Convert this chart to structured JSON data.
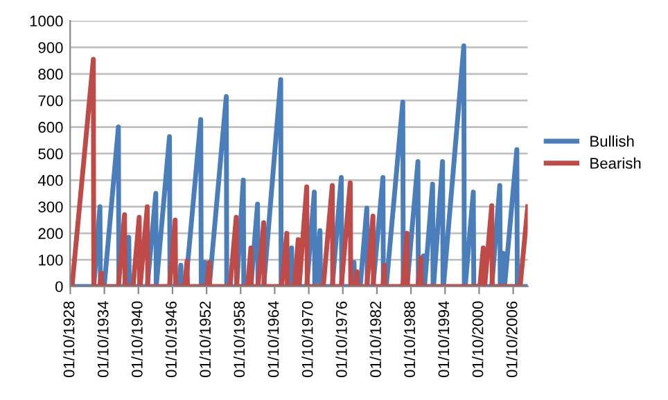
{
  "chart_data": {
    "type": "line",
    "series": [
      {
        "name": "Bullish",
        "color": "#4a7ebb",
        "x": [
          "1928-05",
          "1932-03",
          "1933-04",
          "1933-05",
          "1934-01",
          "1936-07",
          "1936-08",
          "1937-08",
          "1938-05",
          "1938-06",
          "1941-08",
          "1943-02",
          "1943-03",
          "1945-07",
          "1945-08",
          "1947-03",
          "1947-07",
          "1947-08",
          "1948-05",
          "1951-01",
          "1951-02",
          "1951-05",
          "1951-10",
          "1951-11",
          "1952-07",
          "1955-07",
          "1955-08",
          "1957-05",
          "1958-07",
          "1958-08",
          "1959-11",
          "1961-01",
          "1961-02",
          "1962-02",
          "1965-02",
          "1965-03",
          "1966-05",
          "1967-01",
          "1967-02",
          "1969-09",
          "1971-01",
          "1971-02",
          "1971-03",
          "1972-01",
          "1972-02",
          "1974-03",
          "1975-10",
          "1975-11",
          "1977-07",
          "1978-01",
          "1978-02",
          "1979-02",
          "1980-04",
          "1980-05",
          "1981-05",
          "1983-02",
          "1983-03",
          "1983-09",
          "1986-08",
          "1986-09",
          "1987-05",
          "1989-04",
          "1989-05",
          "1989-11",
          "1990-04",
          "1990-05",
          "1990-06",
          "1991-11",
          "1991-12",
          "1992-01",
          "1993-08",
          "1993-09",
          "1993-10",
          "1997-05",
          "1997-06",
          "1997-08",
          "1999-01",
          "1999-02",
          "2002-04",
          "2003-09",
          "2003-10",
          "2003-11",
          "2004-04",
          "2004-05",
          "2004-07",
          "2006-09",
          "2006-10",
          "2008-08"
        ],
        "values": [
          0,
          0,
          300,
          0,
          0,
          600,
          0,
          0,
          185,
          0,
          0,
          350,
          0,
          564,
          0,
          0,
          80,
          0,
          0,
          628,
          0,
          0,
          90,
          0,
          0,
          715,
          0,
          0,
          400,
          0,
          0,
          310,
          0,
          0,
          779,
          0,
          0,
          145,
          0,
          0,
          355,
          0,
          0,
          210,
          0,
          0,
          410,
          0,
          0,
          90,
          0,
          0,
          295,
          0,
          0,
          410,
          0,
          0,
          694,
          0,
          0,
          470,
          0,
          0,
          115,
          0,
          0,
          385,
          0,
          0,
          470,
          0,
          0,
          906,
          0,
          0,
          355,
          0,
          0,
          380,
          0,
          0,
          125,
          0,
          0,
          515,
          0,
          0
        ]
      },
      {
        "name": "Bearish",
        "color": "#be4b48",
        "x": [
          "1928-05",
          "1932-02",
          "1932-03",
          "1933-04",
          "1933-07",
          "1933-08",
          "1936-07",
          "1937-08",
          "1937-09",
          "1939-02",
          "1940-03",
          "1940-04",
          "1940-05",
          "1941-08",
          "1941-09",
          "1945-07",
          "1946-07",
          "1946-08",
          "1948-03",
          "1948-08",
          "1948-09",
          "1952-02",
          "1952-07",
          "1952-08",
          "1956-03",
          "1957-04",
          "1957-05",
          "1959-04",
          "1959-11",
          "1959-12",
          "1961-02",
          "1962-02",
          "1962-03",
          "1965-04",
          "1966-03",
          "1966-04",
          "1967-07",
          "1968-03",
          "1968-04",
          "1968-05",
          "1969-09",
          "1969-10",
          "1972-08",
          "1974-03",
          "1974-04",
          "1975-10",
          "1977-05",
          "1977-06",
          "1978-04",
          "1978-07",
          "1978-08",
          "1980-04",
          "1981-05",
          "1981-06",
          "1983-02",
          "1983-05",
          "1983-06",
          "1986-08",
          "1987-05",
          "1987-06",
          "1989-04",
          "1989-10",
          "1989-11",
          "2000-03",
          "2000-10",
          "2000-11",
          "2001-01",
          "2002-04",
          "2002-05",
          "2007-04",
          "2008-08"
        ],
        "values": [
          0,
          855,
          0,
          0,
          50,
          0,
          0,
          270,
          0,
          0,
          260,
          0,
          0,
          300,
          0,
          0,
          250,
          0,
          0,
          95,
          0,
          0,
          90,
          0,
          0,
          260,
          0,
          0,
          145,
          0,
          0,
          240,
          0,
          0,
          200,
          0,
          0,
          176,
          0,
          0,
          375,
          0,
          0,
          380,
          0,
          0,
          390,
          0,
          0,
          55,
          0,
          0,
          265,
          0,
          0,
          80,
          0,
          0,
          200,
          0,
          0,
          108,
          0,
          0,
          145,
          0,
          0,
          304,
          0,
          0,
          300
        ]
      }
    ],
    "xlim": [
      "1928-01",
      "2008-08"
    ],
    "xticks": [
      {
        "value": "1928-01-10",
        "label": "01/10/1928"
      },
      {
        "value": "1934-01-10",
        "label": "01/10/1934"
      },
      {
        "value": "1940-01-10",
        "label": "01/10/1940"
      },
      {
        "value": "1946-01-10",
        "label": "01/10/1946"
      },
      {
        "value": "1952-01-10",
        "label": "01/10/1952"
      },
      {
        "value": "1958-01-10",
        "label": "01/10/1958"
      },
      {
        "value": "1964-01-10",
        "label": "01/10/1964"
      },
      {
        "value": "1970-01-10",
        "label": "01/10/1970"
      },
      {
        "value": "1976-01-10",
        "label": "01/10/1976"
      },
      {
        "value": "1982-01-10",
        "label": "01/10/1982"
      },
      {
        "value": "1988-01-10",
        "label": "01/10/1988"
      },
      {
        "value": "1994-01-10",
        "label": "01/10/1994"
      },
      {
        "value": "2000-01-10",
        "label": "01/10/2000"
      },
      {
        "value": "2006-01-10",
        "label": "01/10/2006"
      }
    ],
    "ylim": [
      0,
      1000
    ],
    "yticks": [
      0,
      100,
      200,
      300,
      400,
      500,
      600,
      700,
      800,
      900,
      1000
    ],
    "grid": "y",
    "legend": "right",
    "marker": "none",
    "line_style": "solid"
  }
}
